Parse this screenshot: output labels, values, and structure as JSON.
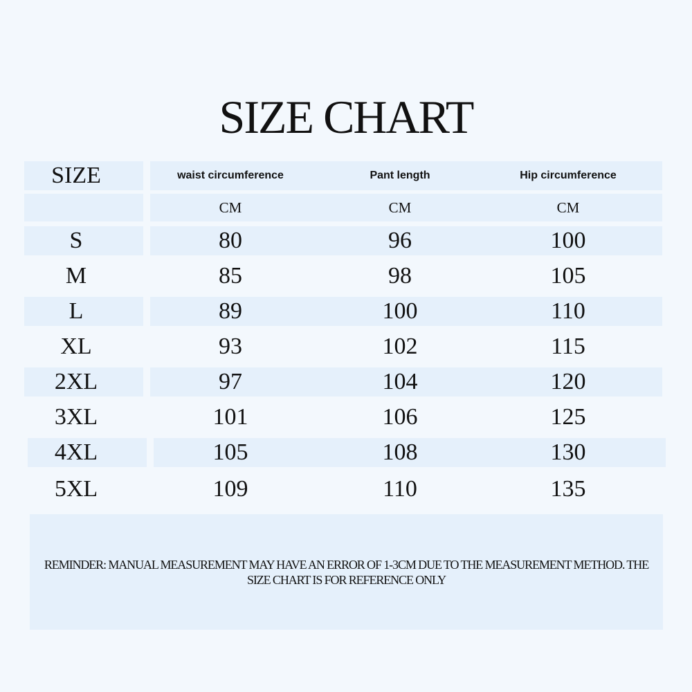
{
  "title": "SIZE CHART",
  "table": {
    "header": [
      "SIZE",
      "waist circumference",
      "Pant length",
      "Hip circumference"
    ],
    "units": [
      "CM",
      "CM",
      "CM"
    ],
    "rows": [
      [
        "S",
        80,
        96,
        100
      ],
      [
        "M",
        85,
        98,
        105
      ],
      [
        "L",
        89,
        100,
        110
      ],
      [
        "XL",
        93,
        102,
        115
      ],
      [
        "2XL",
        97,
        104,
        120
      ],
      [
        "3XL",
        101,
        106,
        125
      ],
      [
        "4XL",
        105,
        108,
        130
      ],
      [
        "5XL",
        109,
        110,
        135
      ]
    ]
  },
  "reminder": "REMINDER: MANUAL MEASUREMENT MAY HAVE AN ERROR OF 1-3CM DUE TO THE MEASUREMENT METHOD. THE SIZE CHART IS FOR REFERENCE ONLY"
}
